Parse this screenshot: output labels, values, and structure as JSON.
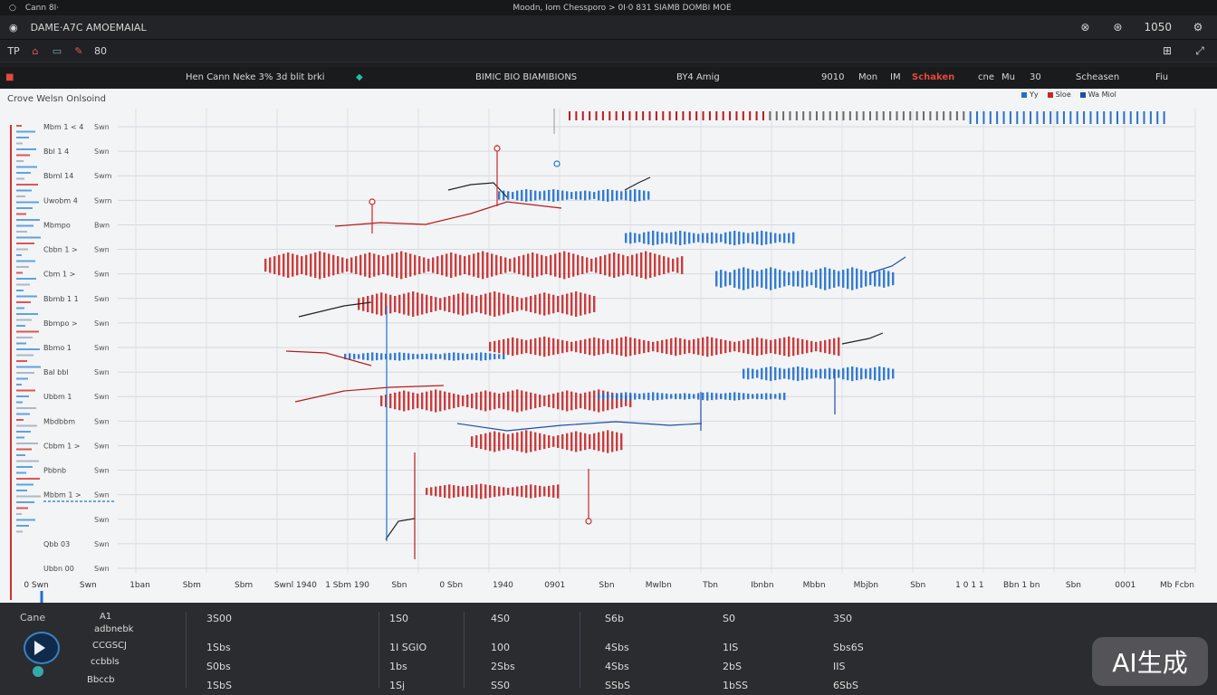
{
  "window": {
    "title_left": "Cann  8I·",
    "title_center": "Moodn, Iom Chessporo >   0I·0 831   SIAMB DOMBI MOE"
  },
  "menubar": {
    "app_title": "DAME·A7C AMOEMAIAL",
    "right_icons": [
      "close-icon",
      "group-icon",
      "settings-icon"
    ],
    "right_text": "1050"
  },
  "toolbar": {
    "tools": [
      "TP",
      "⌂",
      "▭",
      "✎",
      "80"
    ],
    "right_icons": [
      "grid-icon",
      "expand-icon"
    ]
  },
  "infobar": {
    "cells": [
      {
        "text": "Hen Cann Neke 3% 3d blit brki",
        "x": 205
      },
      {
        "text": "BIMIC BIO BIAMIBIONS",
        "x": 525
      },
      {
        "text": "BY4 Amig",
        "x": 747
      },
      {
        "text": "9010",
        "x": 907
      },
      {
        "text": "Mon",
        "x": 948
      },
      {
        "text": "IM",
        "x": 983
      },
      {
        "text": "Schaken",
        "x": 1007
      },
      {
        "text": "cne",
        "x": 1080
      },
      {
        "text": "Mu",
        "x": 1106
      },
      {
        "text": "30",
        "x": 1137
      },
      {
        "text": "Scheasen",
        "x": 1188
      },
      {
        "text": "Fiu",
        "x": 1276
      }
    ]
  },
  "panel": {
    "title": "Crove Welsn Onlsoind"
  },
  "legend": {
    "items": [
      {
        "label": "Yy",
        "color": "#1f6fcf"
      },
      {
        "label": "Sloe",
        "color": "#c62828"
      },
      {
        "label": "Wa Miol",
        "color": "#1f4fa8"
      }
    ]
  },
  "chart_data": {
    "type": "bar",
    "y_tick_labels": [
      "Mbm 1 < 4",
      "Bbl 1 4",
      "Bbml 14",
      "Uwobm 4",
      "Mbmpo",
      "Cbbn 1 >",
      "Cbm 1 >",
      "Bbmb 1 1",
      "Bbmpo >",
      "Bbmo 1",
      "Bal bbl",
      "Ubbm 1",
      "Mbdbbm",
      "Cbbm 1 >",
      "Pbbnb",
      "Mbbm 1 >",
      "",
      "Qbb 03",
      "Ubbn 00"
    ],
    "y_tick_labels_right": [
      "Swn",
      "Swn",
      "Swm",
      "Swm",
      "Bwn",
      "Swn",
      "Swn",
      "Swn",
      "Swn",
      "Swn",
      "Swn",
      "Swn",
      "Swn",
      "Swn",
      "Swn",
      "Swn",
      "Swn",
      "Swn",
      "Swn"
    ],
    "x_tick_labels": [
      "0 Swn",
      "Swn",
      "1ban",
      "Sbm",
      "Sbm",
      "Swnl 1940",
      "1 Sbm 190",
      "Sbn",
      "0 Sbn",
      "1940",
      "0901",
      "Sbn",
      "Mwlbn",
      "Tbn",
      "Ibnbn",
      "Mbbn",
      "Mbjbn",
      "Sbn",
      "1 0 1 1",
      "Bbn 1 bn",
      "Sbn",
      "0001",
      "Mb Fcbn"
    ],
    "series": [
      {
        "name": "Slue",
        "color": "#c62828",
        "values": [
          2,
          3,
          4,
          5,
          6,
          7,
          6,
          5,
          4,
          5,
          6,
          7,
          8,
          7,
          6,
          5,
          4,
          3
        ]
      },
      {
        "name": "Yy",
        "color": "#1f6fcf",
        "values": [
          3,
          4,
          3,
          2,
          4,
          5,
          6,
          5,
          4,
          3,
          4,
          5,
          6,
          5,
          4,
          3,
          2,
          3
        ]
      }
    ],
    "top_strip": {
      "red_count": 60,
      "blue_count": 30
    }
  },
  "bottom": {
    "left_label": "Cane",
    "left_lines": [
      "A1",
      "adbnebk",
      "CCGSCJ",
      "ccbbls",
      "Bbccb"
    ],
    "columns": [
      {
        "rows": [
          "3S00",
          "1Sbs",
          "S0bs",
          "1SbS"
        ]
      },
      {
        "rows": [
          "1S0",
          "1I SGIO",
          "1bs",
          "1Sj"
        ]
      },
      {
        "rows": [
          "4S0",
          "100",
          "2Sbs",
          "SS0"
        ]
      },
      {
        "rows": [
          "S6b",
          "4Sbs",
          "4Sbs",
          "SSbS"
        ]
      },
      {
        "rows": [
          "S0",
          "1IS",
          "2bS",
          "1bSS"
        ]
      },
      {
        "rows": [
          "3S0",
          "Sbs6S",
          "IIS",
          "6SbS"
        ]
      }
    ],
    "right_label": "",
    "watermark": "AI生成"
  }
}
